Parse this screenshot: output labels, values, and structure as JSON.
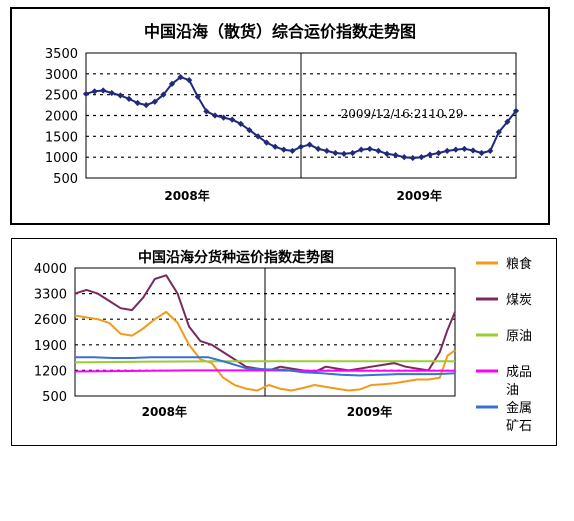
{
  "chart_data": [
    {
      "type": "line",
      "title": "中国沿海（散货）综合运价指数走势图",
      "xlabel": "",
      "ylabel": "",
      "ylim": [
        500,
        3500
      ],
      "yticks": [
        "3500",
        "3000",
        "2500",
        "2000",
        "1500",
        "1000",
        "500"
      ],
      "x_tick_labels": [
        "2008年",
        "2009年"
      ],
      "x_range": [
        0,
        100
      ],
      "year_divider_x": 50,
      "grid": "horizontal dotted",
      "annotation": "2009/12/16:2110.29",
      "series": [
        {
          "color": "#1f2a7a",
          "x": [
            0,
            2,
            4,
            6,
            8,
            10,
            12,
            14,
            16,
            18,
            20,
            22,
            24,
            26,
            28,
            30,
            32,
            34,
            36,
            38,
            40,
            42,
            44,
            46,
            48,
            50,
            52,
            54,
            56,
            58,
            60,
            62,
            64,
            66,
            68,
            70,
            72,
            74,
            76,
            78,
            80,
            82,
            84,
            86,
            88,
            90,
            92,
            94,
            96,
            98,
            100
          ],
          "values": [
            2520,
            2580,
            2600,
            2540,
            2480,
            2400,
            2300,
            2250,
            2330,
            2500,
            2760,
            2920,
            2850,
            2450,
            2100,
            2000,
            1950,
            1900,
            1800,
            1650,
            1500,
            1350,
            1250,
            1180,
            1150,
            1250,
            1300,
            1200,
            1150,
            1100,
            1080,
            1100,
            1180,
            1200,
            1150,
            1080,
            1050,
            1000,
            980,
            1000,
            1060,
            1100,
            1150,
            1180,
            1200,
            1160,
            1100,
            1150,
            1600,
            1850,
            2110
          ]
        }
      ]
    },
    {
      "type": "line",
      "title": "中国沿海分货种运价指数走势图",
      "xlabel": "",
      "ylabel": "",
      "ylim": [
        500,
        4000
      ],
      "yticks": [
        "4000",
        "3300",
        "2600",
        "1900",
        "1200",
        "500"
      ],
      "x_tick_labels": [
        "2008年",
        "2009年"
      ],
      "x_range": [
        0,
        100
      ],
      "year_divider_x": 50,
      "grid": "horizontal dotted",
      "legend_position": "right",
      "series": [
        {
          "name": "粮食",
          "color": "#f39a1a",
          "x": [
            0,
            3,
            6,
            9,
            12,
            15,
            18,
            21,
            24,
            27,
            30,
            33,
            36,
            39,
            42,
            45,
            48,
            51,
            54,
            57,
            60,
            63,
            66,
            69,
            72,
            75,
            78,
            81,
            84,
            87,
            90,
            93,
            96,
            98,
            100
          ],
          "values": [
            2700,
            2650,
            2600,
            2500,
            2200,
            2150,
            2350,
            2600,
            2800,
            2500,
            1900,
            1500,
            1400,
            1000,
            800,
            700,
            650,
            800,
            700,
            650,
            720,
            800,
            750,
            700,
            650,
            680,
            800,
            820,
            850,
            900,
            950,
            950,
            1000,
            1600,
            1750
          ]
        },
        {
          "name": "煤炭",
          "color": "#7a2a5e",
          "x": [
            0,
            3,
            6,
            9,
            12,
            15,
            18,
            21,
            24,
            27,
            30,
            33,
            36,
            39,
            42,
            45,
            48,
            51,
            54,
            57,
            60,
            63,
            66,
            69,
            72,
            75,
            78,
            81,
            84,
            87,
            90,
            93,
            96,
            98,
            100
          ],
          "values": [
            3300,
            3400,
            3300,
            3100,
            2900,
            2850,
            3200,
            3700,
            3800,
            3300,
            2400,
            2000,
            1900,
            1700,
            1500,
            1300,
            1250,
            1200,
            1300,
            1250,
            1200,
            1150,
            1300,
            1250,
            1200,
            1250,
            1300,
            1350,
            1400,
            1300,
            1250,
            1200,
            1700,
            2300,
            2800
          ]
        },
        {
          "name": "原油",
          "color": "#9acd32",
          "x": [
            0,
            20,
            40,
            60,
            80,
            100
          ],
          "values": [
            1420,
            1440,
            1450,
            1450,
            1450,
            1450
          ]
        },
        {
          "name": "成品油",
          "color": "#ff00ff",
          "x": [
            0,
            10,
            20,
            30,
            40,
            50,
            60,
            70,
            80,
            90,
            100
          ],
          "values": [
            1170,
            1180,
            1190,
            1200,
            1200,
            1200,
            1190,
            1190,
            1190,
            1190,
            1190
          ]
        },
        {
          "name": "金属矿石",
          "color": "#3a6fd8",
          "x": [
            0,
            5,
            10,
            15,
            20,
            25,
            30,
            35,
            40,
            45,
            50,
            55,
            60,
            65,
            70,
            75,
            80,
            85,
            90,
            95,
            100
          ],
          "values": [
            1560,
            1560,
            1540,
            1540,
            1560,
            1560,
            1560,
            1560,
            1420,
            1260,
            1230,
            1220,
            1150,
            1120,
            1080,
            1060,
            1080,
            1100,
            1100,
            1100,
            1120
          ]
        }
      ]
    }
  ]
}
